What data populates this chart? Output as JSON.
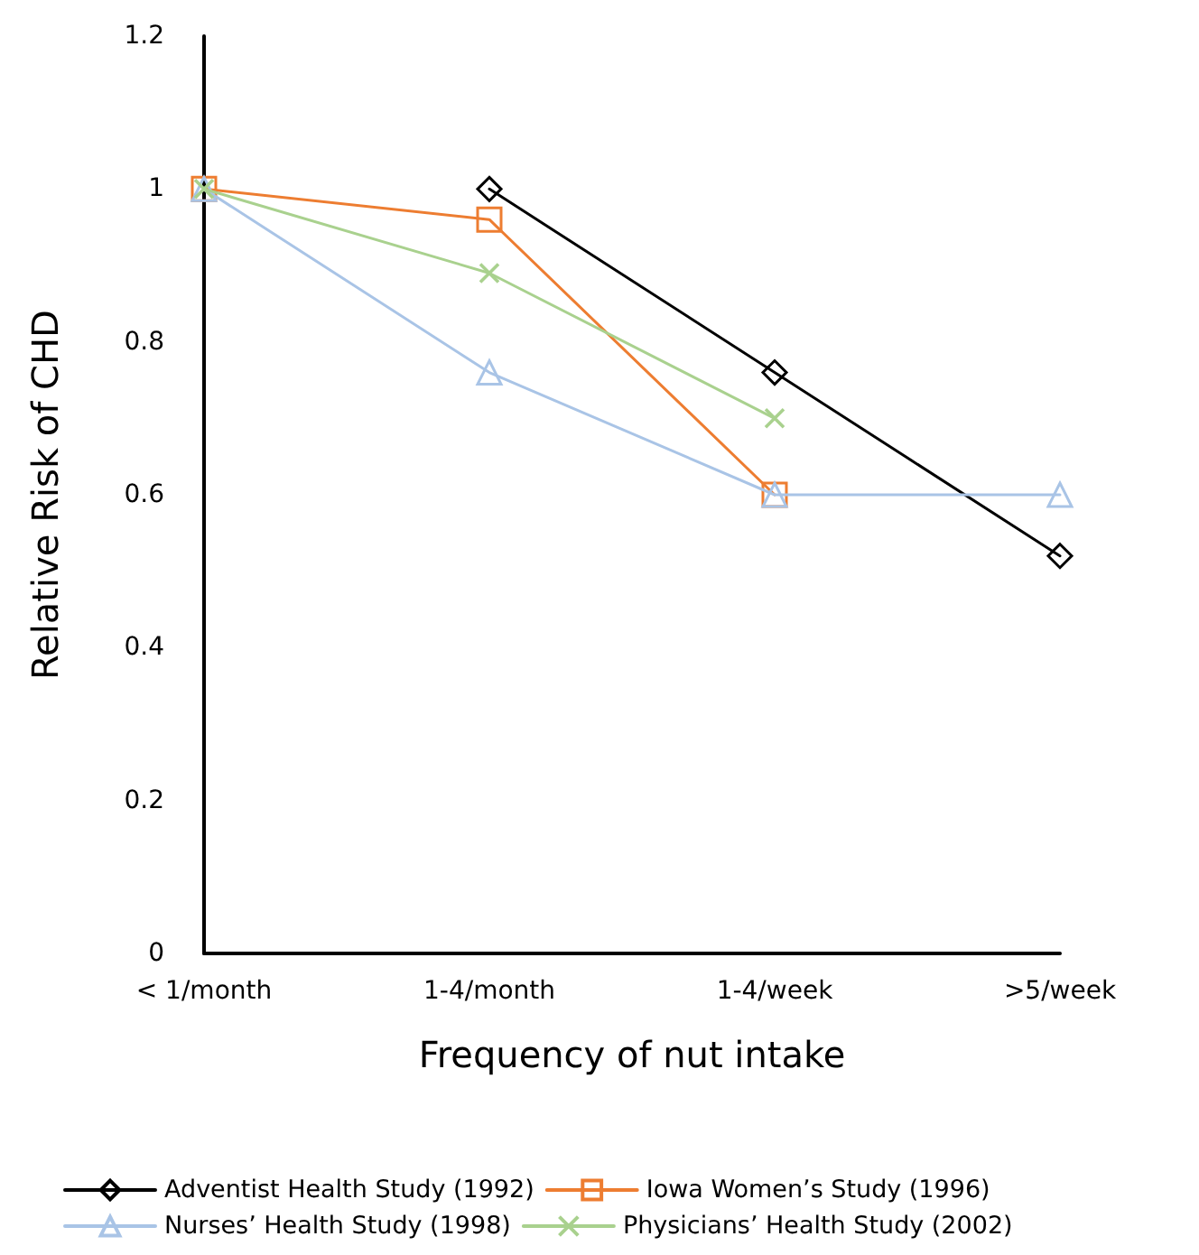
{
  "chart_data": {
    "type": "line",
    "xlabel": "Frequency of nut intake",
    "ylabel": "Relative Risk of CHD",
    "categories": [
      "< 1/month",
      "1-4/month",
      "1-4/week",
      ">5/week"
    ],
    "ylim": [
      0,
      1.2
    ],
    "yticks": [
      0,
      0.2,
      0.4,
      0.6,
      0.8,
      1,
      1.2
    ],
    "grid": false,
    "legend": "bottom",
    "series": [
      {
        "name": "Adventist Health Study (1992)",
        "color": "#000000",
        "marker": "diamond",
        "values": [
          null,
          1,
          0.76,
          0.52
        ]
      },
      {
        "name": "Iowa Women’s Study (1996)",
        "color": "#ed7d31",
        "marker": "square",
        "values": [
          1,
          0.96,
          0.6,
          null
        ]
      },
      {
        "name": "Nurses’ Health Study (1998)",
        "color": "#a9c4e6",
        "marker": "triangle",
        "values": [
          1,
          0.76,
          0.6,
          0.6
        ]
      },
      {
        "name": "Physicians’ Health Study (2002)",
        "color": "#a9d18e",
        "marker": "cross",
        "values": [
          1,
          0.89,
          0.7,
          null
        ]
      }
    ]
  }
}
